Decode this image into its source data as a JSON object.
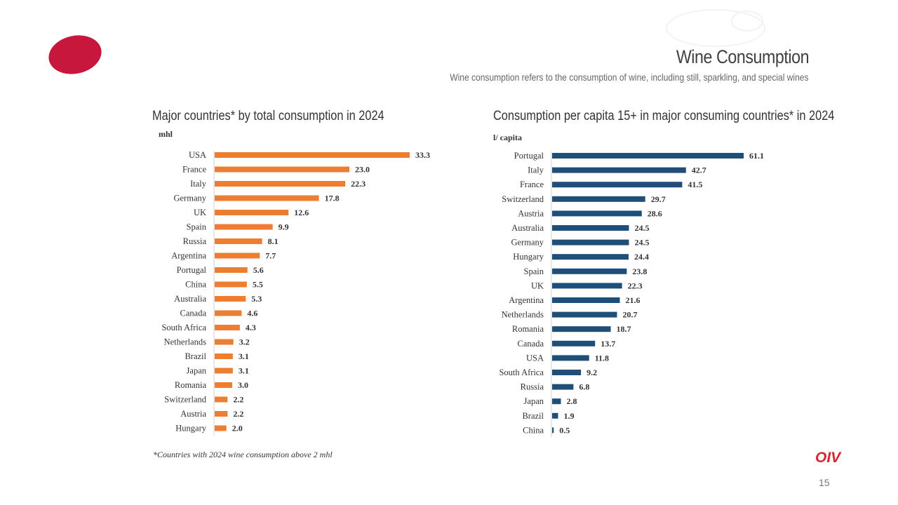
{
  "header": {
    "title": "Wine Consumption",
    "subtitle": "Wine consumption refers to the consumption of wine, including still, sparkling, and special wines"
  },
  "footer": {
    "footnote": "*Countries with 2024 wine consumption above 2 mhl",
    "brand": "OIV",
    "page_number": "15"
  },
  "colors": {
    "orange": "#ed7d31",
    "navy": "#1f4e79",
    "brand_red": "#c8173c"
  },
  "chart_data": [
    {
      "type": "bar",
      "orientation": "horizontal",
      "title": "Major countries* by total consumption in 2024",
      "unit": "mhl",
      "categories": [
        "USA",
        "France",
        "Italy",
        "Germany",
        "UK",
        "Spain",
        "Russia",
        "Argentina",
        "Portugal",
        "China",
        "Australia",
        "Canada",
        "South Africa",
        "Netherlands",
        "Brazil",
        "Japan",
        "Romania",
        "Switzerland",
        "Austria",
        "Hungary"
      ],
      "values": [
        33.3,
        23.0,
        22.3,
        17.8,
        12.6,
        9.9,
        8.1,
        7.7,
        5.6,
        5.5,
        5.3,
        4.6,
        4.3,
        3.2,
        3.1,
        3.1,
        3.0,
        2.2,
        2.2,
        2.0
      ],
      "labels": [
        "33.3",
        "23.0",
        "22.3",
        "17.8",
        "12.6",
        "9.9",
        "8.1",
        "7.7",
        "5.6",
        "5.5",
        "5.3",
        "4.6",
        "4.3",
        "3.2",
        "3.1",
        "3.1",
        "3.0",
        "2.2",
        "2.2",
        "2.0"
      ],
      "color": "#ed7d31",
      "xlim": [
        0,
        33.3
      ]
    },
    {
      "type": "bar",
      "orientation": "horizontal",
      "title": "Consumption per capita 15+ in major consuming countries* in 2024",
      "unit": "l/ capita",
      "categories": [
        "Portugal",
        "Italy",
        "France",
        "Switzerland",
        "Austria",
        "Australia",
        "Germany",
        "Hungary",
        "Spain",
        "UK",
        "Argentina",
        "Netherlands",
        "Romania",
        "Canada",
        "USA",
        "South Africa",
        "Russia",
        "Japan",
        "Brazil",
        "China"
      ],
      "values": [
        61.1,
        42.7,
        41.5,
        29.7,
        28.6,
        24.5,
        24.5,
        24.4,
        23.8,
        22.3,
        21.6,
        20.7,
        18.7,
        13.7,
        11.8,
        9.2,
        6.8,
        2.8,
        1.9,
        0.5
      ],
      "labels": [
        "61.1",
        "42.7",
        "41.5",
        "29.7",
        "28.6",
        "24.5",
        "24.5",
        "24.4",
        "23.8",
        "22.3",
        "21.6",
        "20.7",
        "18.7",
        "13.7",
        "11.8",
        "9.2",
        "6.8",
        "2.8",
        "1.9",
        "0.5"
      ],
      "color": "#1f4e79",
      "xlim": [
        0,
        61.1
      ]
    }
  ]
}
